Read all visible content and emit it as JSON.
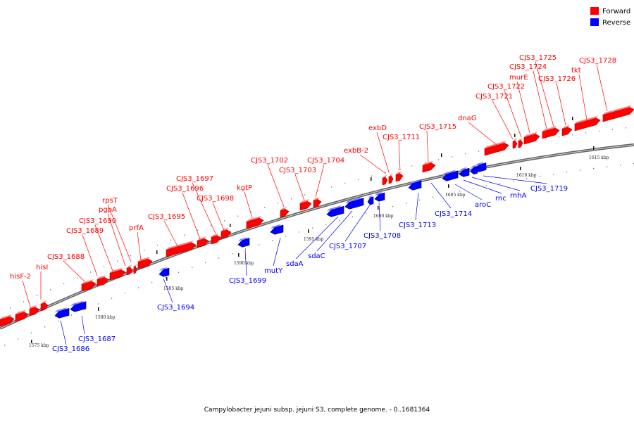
{
  "legend": {
    "forward": {
      "label": "Forward",
      "color": "#ff0000"
    },
    "reverse": {
      "label": "Reverse",
      "color": "#0000ff"
    }
  },
  "caption": "Campylobacter jejuni subsp. jejuni S3, complete genome. - 0..1681364",
  "scale_labels": [
    "1575 kbp",
    "1580 kbp",
    "1585 kbp",
    "1590 kbp",
    "1595 kbp",
    "1600 kbp",
    "1605 kbp",
    "1610 kbp",
    "1615 kbp"
  ],
  "forward_genes": [
    "hisF-2",
    "hisI",
    "CJS3_1688",
    "CJS3_1689",
    "CJS3_1690",
    "pgpA",
    "rpsT",
    "prfA",
    "CJS3_1695",
    "CJS3_1696",
    "CJS3_1697",
    "CJS3_1698",
    "kgtP",
    "CJS3_1702",
    "CJS3_1703",
    "CJS3_1704",
    "exbB-2",
    "exbD",
    "CJS3_1711",
    "CJS3_1715",
    "dnaG",
    "CJS3_1721",
    "CJS3_1722",
    "murE",
    "CJS3_1724",
    "CJS3_1725",
    "CJS3_1726",
    "tkt",
    "CJS3_1728"
  ],
  "reverse_genes": [
    "CJS3_1686",
    "CJS3_1687",
    "CJS3_1694",
    "CJS3_1699",
    "mutY",
    "sdaA",
    "sdaC",
    "CJS3_1707",
    "CJS3_1708",
    "CJS3_1713",
    "CJS3_1714",
    "aroC",
    "rnc",
    "rnhA",
    "CJS3_1719"
  ]
}
